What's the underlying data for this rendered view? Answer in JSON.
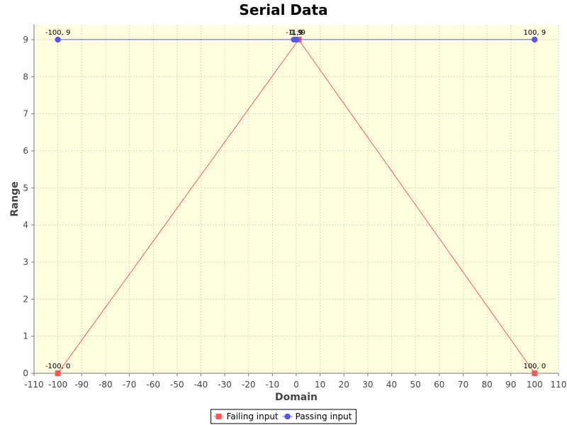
{
  "chart_data": {
    "type": "line",
    "title": "Serial Data",
    "xlabel": "Domain",
    "ylabel": "Range",
    "xlim": [
      -110,
      110
    ],
    "ylim": [
      0,
      9.4
    ],
    "xticks": [
      -110,
      -100,
      -90,
      -80,
      -70,
      -60,
      -50,
      -40,
      -30,
      -20,
      -10,
      0,
      10,
      20,
      30,
      40,
      50,
      60,
      70,
      80,
      90,
      100,
      110
    ],
    "yticks": [
      0,
      1,
      2,
      3,
      4,
      5,
      6,
      7,
      8,
      9
    ],
    "grid": true,
    "legend_position": "bottom",
    "plot_background": "#ffffe0",
    "series": [
      {
        "name": "Failing input",
        "color": "#ff5555",
        "marker": "square",
        "points": [
          {
            "x": -100,
            "y": 0,
            "label": "-100, 0"
          },
          {
            "x": 1,
            "y": 9,
            "label": "1, 9"
          },
          {
            "x": 100,
            "y": 0,
            "label": "100, 0"
          }
        ]
      },
      {
        "name": "Passing input",
        "color": "#5555ff",
        "marker": "circle",
        "points": [
          {
            "x": -100,
            "y": 9,
            "label": "-100, 9"
          },
          {
            "x": -1,
            "y": 9,
            "label": "-1, 9"
          },
          {
            "x": 0,
            "y": 9,
            "label": "0, 9"
          },
          {
            "x": 100,
            "y": 9,
            "label": "100, 9"
          }
        ]
      }
    ]
  }
}
